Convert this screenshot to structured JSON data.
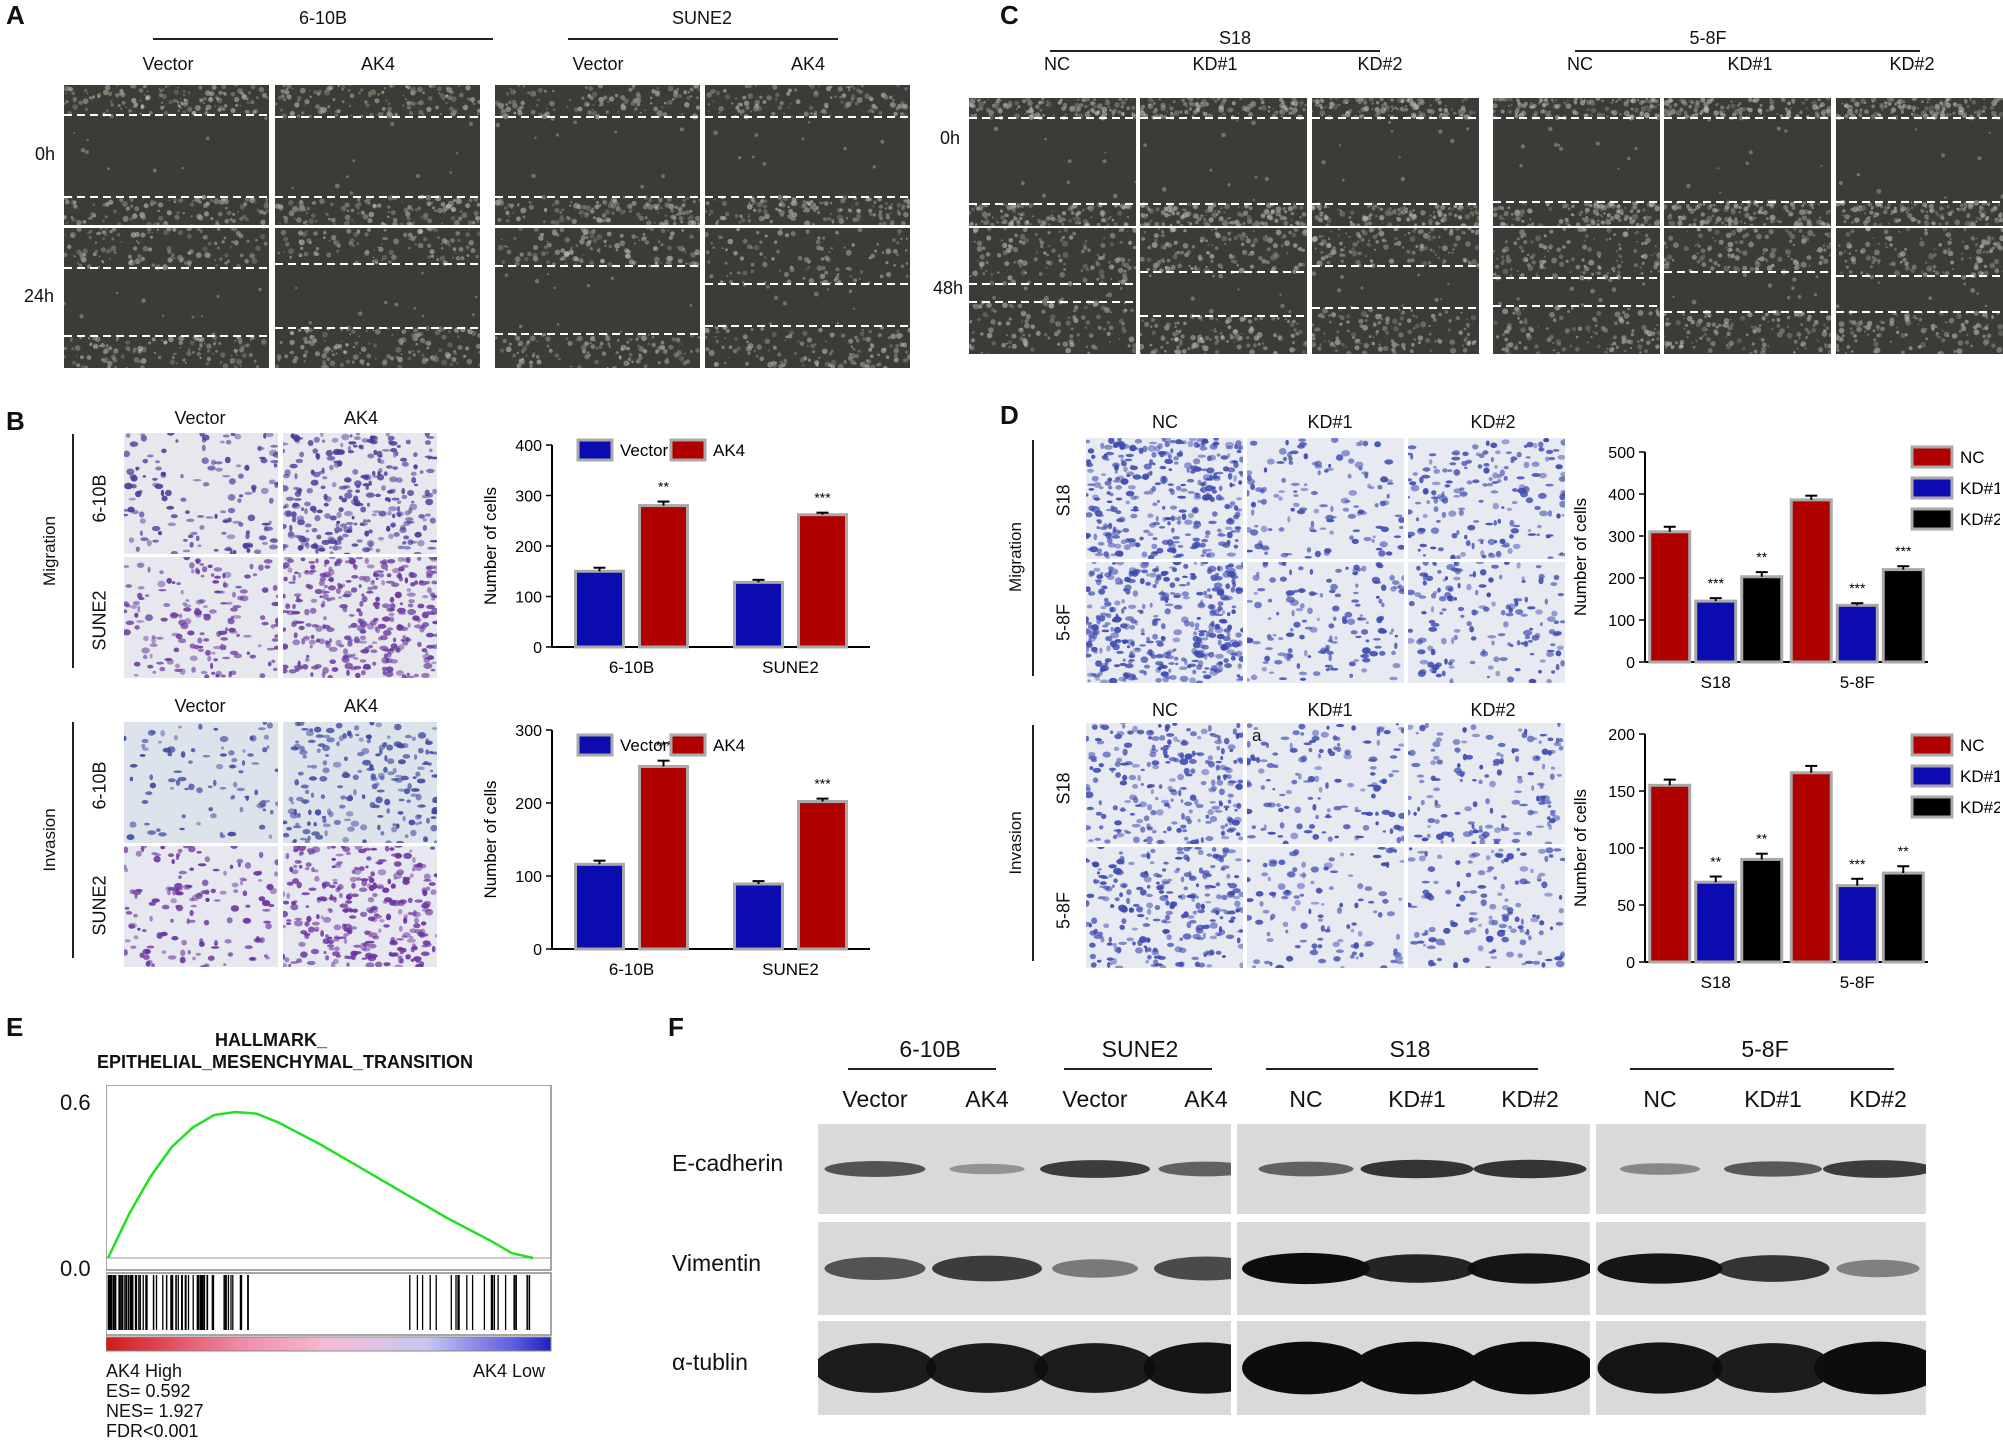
{
  "panels": {
    "A": {
      "letter": "A",
      "lines": [
        "6-10B",
        "SUNE2"
      ],
      "columns": [
        "Vector",
        "AK4",
        "Vector",
        "AK4"
      ],
      "rows": [
        "0h",
        "24h"
      ]
    },
    "B": {
      "letter": "B",
      "columns": [
        "Vector",
        "AK4"
      ],
      "columns2": [
        "Vector",
        "AK4"
      ],
      "sections": [
        "Migration",
        "Invasion"
      ],
      "cell_rows": [
        "6-10B",
        "SUNE2",
        "6-10B",
        "SUNE2"
      ]
    },
    "C": {
      "letter": "C",
      "lines": [
        "S18",
        "5-8F"
      ],
      "columns": [
        "NC",
        "KD#1",
        "KD#2",
        "NC",
        "KD#1",
        "KD#2"
      ],
      "rows": [
        "0h",
        "48h"
      ]
    },
    "D": {
      "letter": "D",
      "columns": [
        "NC",
        "KD#1",
        "KD#2"
      ],
      "columns2": [
        "NC",
        "KD#1",
        "KD#2"
      ],
      "sections": [
        "Migration",
        "Invasion"
      ],
      "cell_rows": [
        "S18",
        "5-8F",
        "S18",
        "5-8F"
      ],
      "stray_mark": "a"
    },
    "E": {
      "letter": "E",
      "title_line1": "HALLMARK_",
      "title_line2": "EPITHELIAL_MESENCHYMAL_TRANSITION",
      "y_ticks": [
        "0.6",
        "0.0"
      ],
      "high_label": "AK4 High",
      "low_label": "AK4 Low",
      "stats": [
        "ES= 0.592",
        "NES= 1.927",
        "FDR<0.001"
      ]
    },
    "F": {
      "letter": "F",
      "groups": [
        "6-10B",
        "SUNE2",
        "S18",
        "5-8F"
      ],
      "lanes": [
        "Vector",
        "AK4",
        "Vector",
        "AK4",
        "NC",
        "KD#1",
        "KD#2",
        "NC",
        "KD#1",
        "KD#2"
      ],
      "proteins": [
        "E-cadherin",
        "Vimentin",
        "α-tublin"
      ]
    }
  },
  "colors": {
    "vector": "#0b0bb0",
    "ak4": "#b00000",
    "nc": "#b00000",
    "kd1": "#0b0bb0",
    "kd2": "#000000",
    "gsea_curve": "#22e022"
  },
  "chart_data": [
    {
      "id": "B-migration",
      "type": "bar",
      "categories": [
        "6-10B",
        "SUNE2"
      ],
      "series": [
        {
          "name": "Vector",
          "values": [
            150,
            128
          ],
          "errors": [
            7,
            5
          ]
        },
        {
          "name": "AK4",
          "values": [
            280,
            262
          ],
          "errors": [
            8,
            4
          ]
        }
      ],
      "significance": [
        "**",
        "***"
      ],
      "ylabel": "Number of cells",
      "ylim": [
        0,
        400
      ],
      "yticks": [
        0,
        100,
        200,
        300,
        400
      ],
      "legend": "top"
    },
    {
      "id": "B-invasion",
      "type": "bar",
      "categories": [
        "6-10B",
        "SUNE2"
      ],
      "series": [
        {
          "name": "Vector",
          "values": [
            116,
            89
          ],
          "errors": [
            5,
            4
          ]
        },
        {
          "name": "AK4",
          "values": [
            250,
            202
          ],
          "errors": [
            8,
            4
          ]
        }
      ],
      "significance": [
        "***",
        "***"
      ],
      "ylabel": "Number of cells",
      "ylim": [
        0,
        300
      ],
      "yticks": [
        0,
        100,
        200,
        300
      ],
      "legend": "top"
    },
    {
      "id": "D-migration",
      "type": "bar",
      "categories": [
        "S18",
        "5-8F"
      ],
      "series": [
        {
          "name": "NC",
          "values": [
            310,
            386
          ],
          "errors": [
            12,
            10
          ]
        },
        {
          "name": "KD#1",
          "values": [
            145,
            135
          ],
          "errors": [
            7,
            5
          ]
        },
        {
          "name": "KD#2",
          "values": [
            203,
            220
          ],
          "errors": [
            11,
            8
          ]
        }
      ],
      "significance": [
        [
          "",
          "***",
          "**"
        ],
        [
          "",
          "***",
          "***"
        ]
      ],
      "ylabel": "Number of cells",
      "ylim": [
        0,
        500
      ],
      "yticks": [
        0,
        100,
        200,
        300,
        400,
        500
      ],
      "legend": "right"
    },
    {
      "id": "D-invasion",
      "type": "bar",
      "categories": [
        "S18",
        "5-8F"
      ],
      "series": [
        {
          "name": "NC",
          "values": [
            155,
            166
          ],
          "errors": [
            5,
            6
          ]
        },
        {
          "name": "KD#1",
          "values": [
            70,
            67
          ],
          "errors": [
            5,
            6
          ]
        },
        {
          "name": "KD#2",
          "values": [
            90,
            78
          ],
          "errors": [
            5,
            6
          ]
        }
      ],
      "significance": [
        [
          "",
          "**",
          "**"
        ],
        [
          "",
          "***",
          "**"
        ]
      ],
      "ylabel": "Number of cells",
      "ylim": [
        0,
        200
      ],
      "yticks": [
        0,
        50,
        100,
        150,
        200
      ],
      "legend": "right"
    },
    {
      "id": "E-gsea",
      "type": "line",
      "x": [
        0,
        0.05,
        0.1,
        0.15,
        0.2,
        0.25,
        0.3,
        0.35,
        0.4,
        0.5,
        0.6,
        0.7,
        0.8,
        0.9,
        0.95,
        1.0
      ],
      "y": [
        0.0,
        0.18,
        0.33,
        0.45,
        0.53,
        0.58,
        0.592,
        0.585,
        0.55,
        0.46,
        0.36,
        0.26,
        0.16,
        0.07,
        0.02,
        0.0
      ],
      "ylim": [
        0,
        0.6
      ],
      "yticks": [
        0.0,
        0.6
      ]
    }
  ]
}
